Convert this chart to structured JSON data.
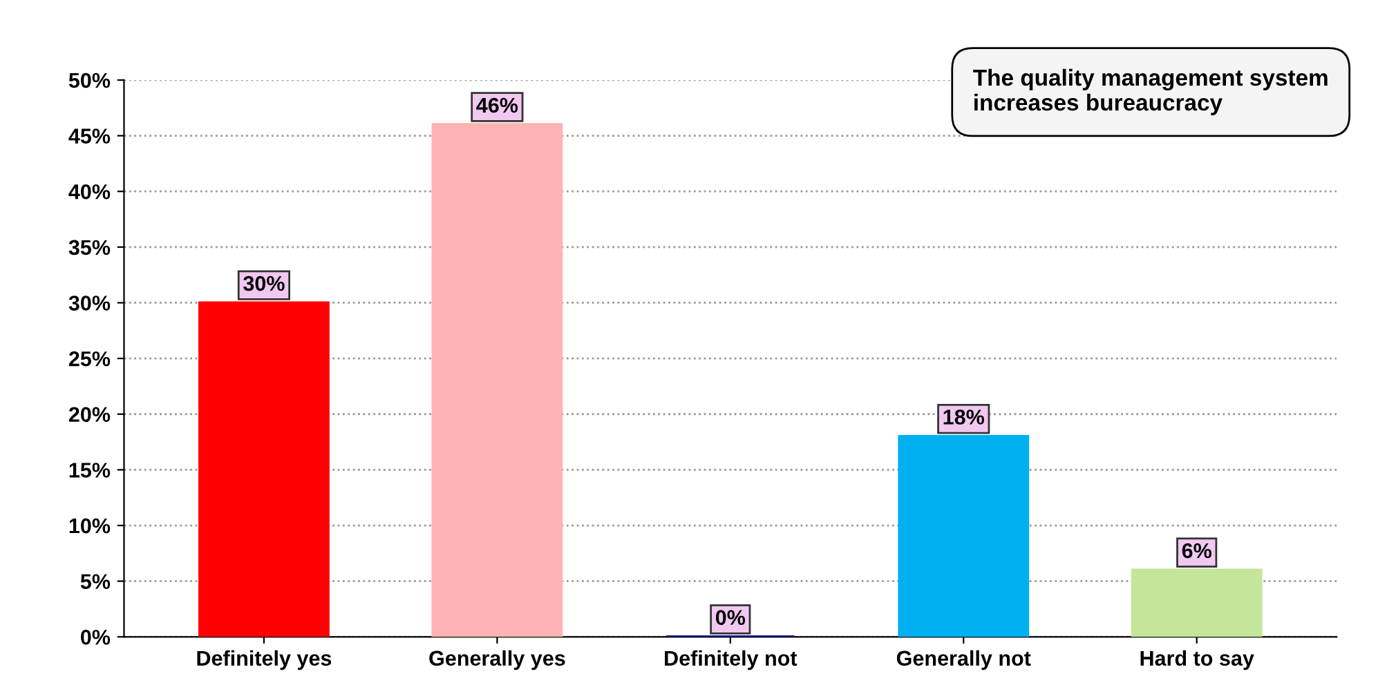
{
  "chart_data": {
    "type": "bar",
    "title": "The quality management system increases bureaucracy",
    "categories": [
      "Definitely yes",
      "Generally yes",
      "Definitely not",
      "Generally not",
      "Hard to say"
    ],
    "values": [
      30,
      46,
      0,
      18,
      6
    ],
    "colors": [
      "#ff0000",
      "#ffb3b3",
      "#00009a",
      "#00b0f0",
      "#c4e59a"
    ],
    "value_labels": [
      "30%",
      "46%",
      "0%",
      "18%",
      "6%"
    ],
    "ylim": [
      0,
      50
    ],
    "yticks": [
      {
        "value": 0,
        "label": "0%"
      },
      {
        "value": 5,
        "label": "5%"
      },
      {
        "value": 10,
        "label": "10%"
      },
      {
        "value": 15,
        "label": "15%"
      },
      {
        "value": 20,
        "label": "20%"
      },
      {
        "value": 25,
        "label": "25%"
      },
      {
        "value": 30,
        "label": "30%"
      },
      {
        "value": 35,
        "label": "35%"
      },
      {
        "value": 40,
        "label": "40%"
      },
      {
        "value": 45,
        "label": "45%"
      },
      {
        "value": 50,
        "label": "50%"
      }
    ],
    "grid": "y"
  }
}
